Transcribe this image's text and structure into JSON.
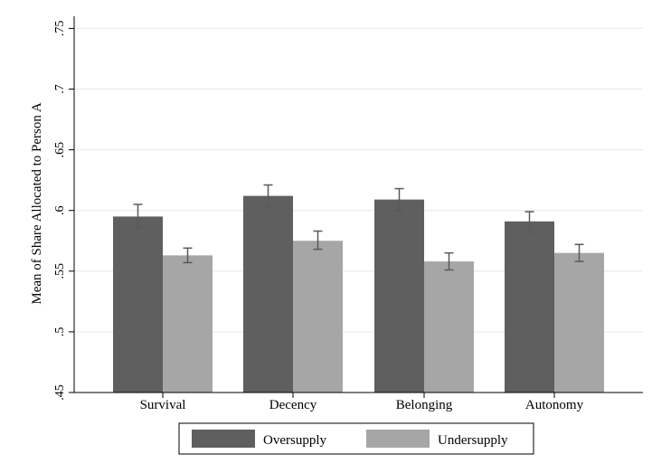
{
  "chart_data": {
    "type": "bar",
    "title": "",
    "xlabel": "",
    "ylabel": "Mean of Share Allocated to Person A",
    "categories": [
      "Survival",
      "Decency",
      "Belonging",
      "Autonomy"
    ],
    "series": [
      {
        "name": "Oversupply",
        "color": "#5f5f5f",
        "values": [
          0.595,
          0.612,
          0.609,
          0.591
        ],
        "ci_low": [
          0.586,
          0.603,
          0.6,
          0.582
        ],
        "ci_high": [
          0.605,
          0.621,
          0.618,
          0.599
        ]
      },
      {
        "name": "Undersupply",
        "color": "#a6a6a6",
        "values": [
          0.563,
          0.575,
          0.558,
          0.565
        ],
        "ci_low": [
          0.557,
          0.568,
          0.551,
          0.558
        ],
        "ci_high": [
          0.569,
          0.583,
          0.565,
          0.572
        ]
      }
    ],
    "ylim": [
      0.45,
      0.76
    ],
    "yticks": [
      0.45,
      0.5,
      0.55,
      0.6,
      0.65,
      0.7,
      0.75
    ],
    "ytick_labels": [
      ".45",
      ".5",
      ".55",
      ".6",
      ".65",
      ".7",
      ".75"
    ],
    "grid": true,
    "legend_position": "bottom",
    "error_bar_color": "#5a5a5a",
    "grid_color": "#e6e6e6"
  }
}
